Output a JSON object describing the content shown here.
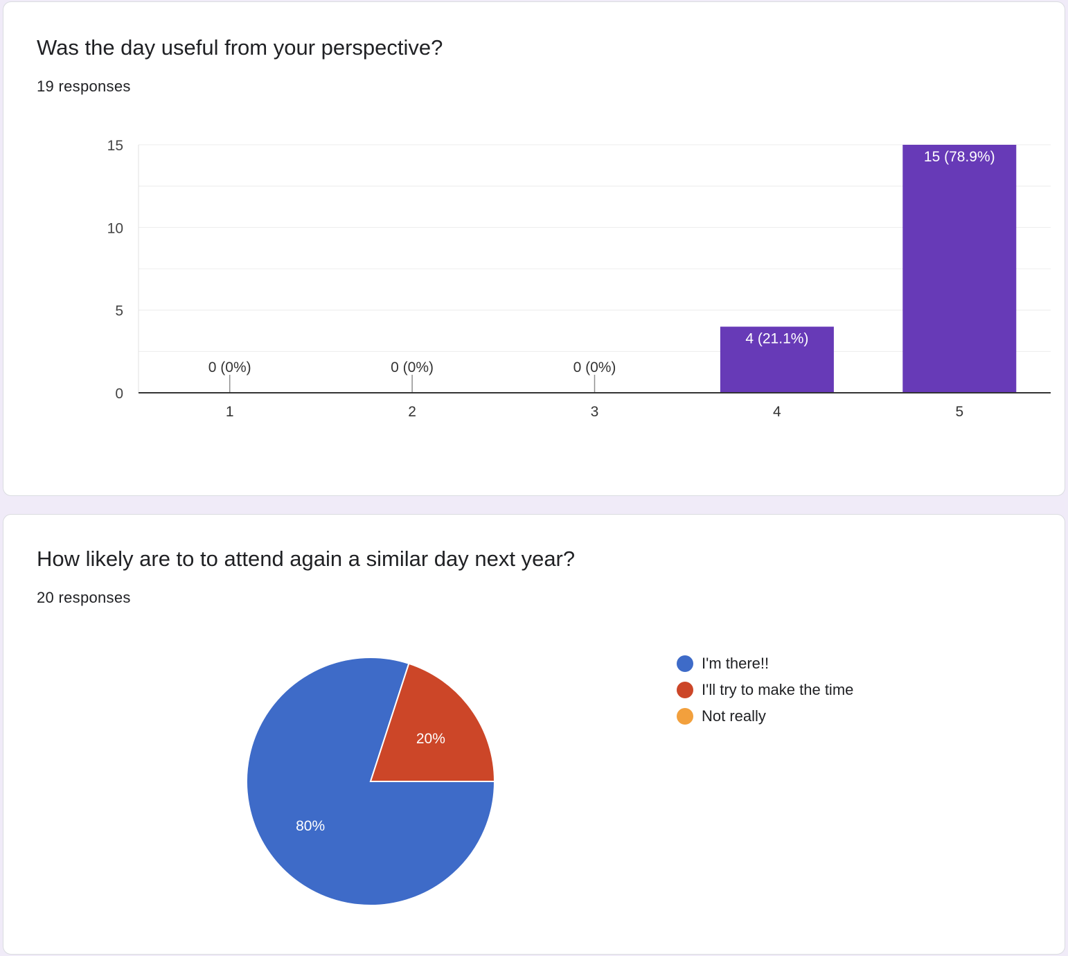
{
  "questions": [
    {
      "title": "Was the day useful from your perspective?",
      "responses": "19 responses"
    },
    {
      "title": "How likely are to to attend again a similar day next year?",
      "responses": "20 responses"
    }
  ],
  "chart_data": [
    {
      "type": "bar",
      "categories": [
        "1",
        "2",
        "3",
        "4",
        "5"
      ],
      "values": [
        0,
        0,
        0,
        4,
        15
      ],
      "data_labels": [
        "0 (0%)",
        "0 (0%)",
        "0 (0%)",
        "4 (21.1%)",
        "15 (78.9%)"
      ],
      "ylim": [
        0,
        15
      ],
      "yticks": [
        0,
        5,
        10,
        15
      ],
      "grid": true,
      "bar_color": "#673ab7"
    },
    {
      "type": "pie",
      "labels": [
        "I'm there!!",
        "I'll try to make the time",
        "Not really"
      ],
      "values": [
        80,
        20,
        0
      ],
      "slice_labels": [
        "80%",
        "20%",
        ""
      ],
      "colors": [
        "#3e6bc8",
        "#cc4628",
        "#f2a03d"
      ],
      "legend": "right"
    }
  ]
}
